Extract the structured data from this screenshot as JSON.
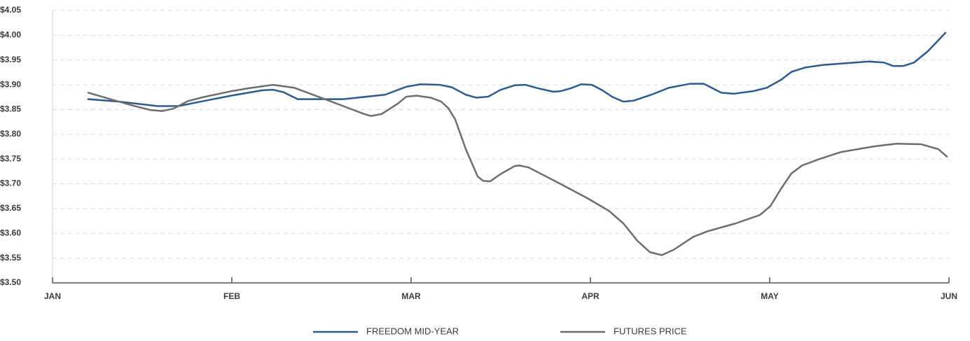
{
  "chart_data": {
    "type": "line",
    "xlim": [
      0,
      5
    ],
    "xticks": [
      {
        "value": 0,
        "label": "JAN"
      },
      {
        "value": 1,
        "label": "FEB"
      },
      {
        "value": 2,
        "label": "MAR"
      },
      {
        "value": 3,
        "label": "APR"
      },
      {
        "value": 4,
        "label": "MAY"
      },
      {
        "value": 5,
        "label": "JUN"
      }
    ],
    "ylim": [
      3.5,
      4.05
    ],
    "yticks": [
      {
        "value": 3.5,
        "label": "$3.50"
      },
      {
        "value": 3.55,
        "label": "$3.55"
      },
      {
        "value": 3.6,
        "label": "$3.60"
      },
      {
        "value": 3.65,
        "label": "$3.65"
      },
      {
        "value": 3.7,
        "label": "$3.70"
      },
      {
        "value": 3.75,
        "label": "$3.75"
      },
      {
        "value": 3.8,
        "label": "$3.80"
      },
      {
        "value": 3.85,
        "label": "$3.85"
      },
      {
        "value": 3.9,
        "label": "$3.90"
      },
      {
        "value": 3.95,
        "label": "$3.95"
      },
      {
        "value": 4.0,
        "label": "$4.00"
      },
      {
        "value": 4.05,
        "label": "$4.05"
      }
    ],
    "grid": true,
    "legend": "bottom",
    "series": [
      {
        "name": "FREEDOM MID-YEAR",
        "color": "#2e5b8e",
        "x": [
          0.199,
          0.371,
          0.586,
          0.703,
          0.84,
          0.996,
          1.172,
          1.23,
          1.289,
          1.367,
          1.621,
          1.855,
          1.973,
          2.051,
          2.16,
          2.227,
          2.305,
          2.363,
          2.43,
          2.5,
          2.578,
          2.637,
          2.707,
          2.793,
          2.832,
          2.891,
          2.949,
          3.008,
          3.066,
          3.125,
          3.184,
          3.242,
          3.34,
          3.438,
          3.555,
          3.633,
          3.73,
          3.801,
          3.906,
          3.984,
          4.063,
          4.121,
          4.199,
          4.297,
          4.551,
          4.637,
          4.688,
          4.746,
          4.805,
          4.883,
          4.98
        ],
        "values": [
          3.871,
          3.866,
          3.857,
          3.857,
          3.867,
          3.878,
          3.889,
          3.89,
          3.885,
          3.871,
          3.871,
          3.88,
          3.896,
          3.901,
          3.9,
          3.895,
          3.88,
          3.874,
          3.876,
          3.89,
          3.899,
          3.9,
          3.893,
          3.886,
          3.887,
          3.893,
          3.901,
          3.9,
          3.889,
          3.875,
          3.866,
          3.868,
          3.88,
          3.894,
          3.902,
          3.902,
          3.884,
          3.882,
          3.887,
          3.894,
          3.91,
          3.926,
          3.935,
          3.94,
          3.947,
          3.945,
          3.938,
          3.938,
          3.945,
          3.968,
          4.005
        ]
      },
      {
        "name": "FUTURES PRICE",
        "color": "#6d6d6d",
        "x": [
          0.199,
          0.332,
          0.449,
          0.547,
          0.613,
          0.676,
          0.754,
          0.84,
          0.996,
          1.094,
          1.23,
          1.348,
          1.504,
          1.621,
          1.738,
          1.777,
          1.836,
          1.926,
          1.973,
          2.031,
          2.109,
          2.168,
          2.207,
          2.246,
          2.305,
          2.371,
          2.402,
          2.441,
          2.5,
          2.578,
          2.605,
          2.656,
          2.832,
          2.988,
          3.105,
          3.184,
          3.262,
          3.332,
          3.398,
          3.465,
          3.574,
          3.652,
          3.809,
          3.945,
          4.004,
          4.063,
          4.121,
          4.18,
          4.277,
          4.395,
          4.59,
          4.707,
          4.844,
          4.941,
          4.988
        ],
        "values": [
          3.884,
          3.87,
          3.858,
          3.849,
          3.847,
          3.852,
          3.867,
          3.875,
          3.887,
          3.893,
          3.9,
          3.894,
          3.873,
          3.857,
          3.841,
          3.837,
          3.841,
          3.862,
          3.876,
          3.878,
          3.874,
          3.866,
          3.853,
          3.83,
          3.77,
          3.715,
          3.706,
          3.705,
          3.72,
          3.736,
          3.737,
          3.733,
          3.7,
          3.67,
          3.645,
          3.62,
          3.585,
          3.562,
          3.556,
          3.567,
          3.593,
          3.604,
          3.62,
          3.637,
          3.655,
          3.69,
          3.721,
          3.737,
          3.75,
          3.764,
          3.776,
          3.781,
          3.78,
          3.77,
          3.755
        ]
      }
    ]
  }
}
